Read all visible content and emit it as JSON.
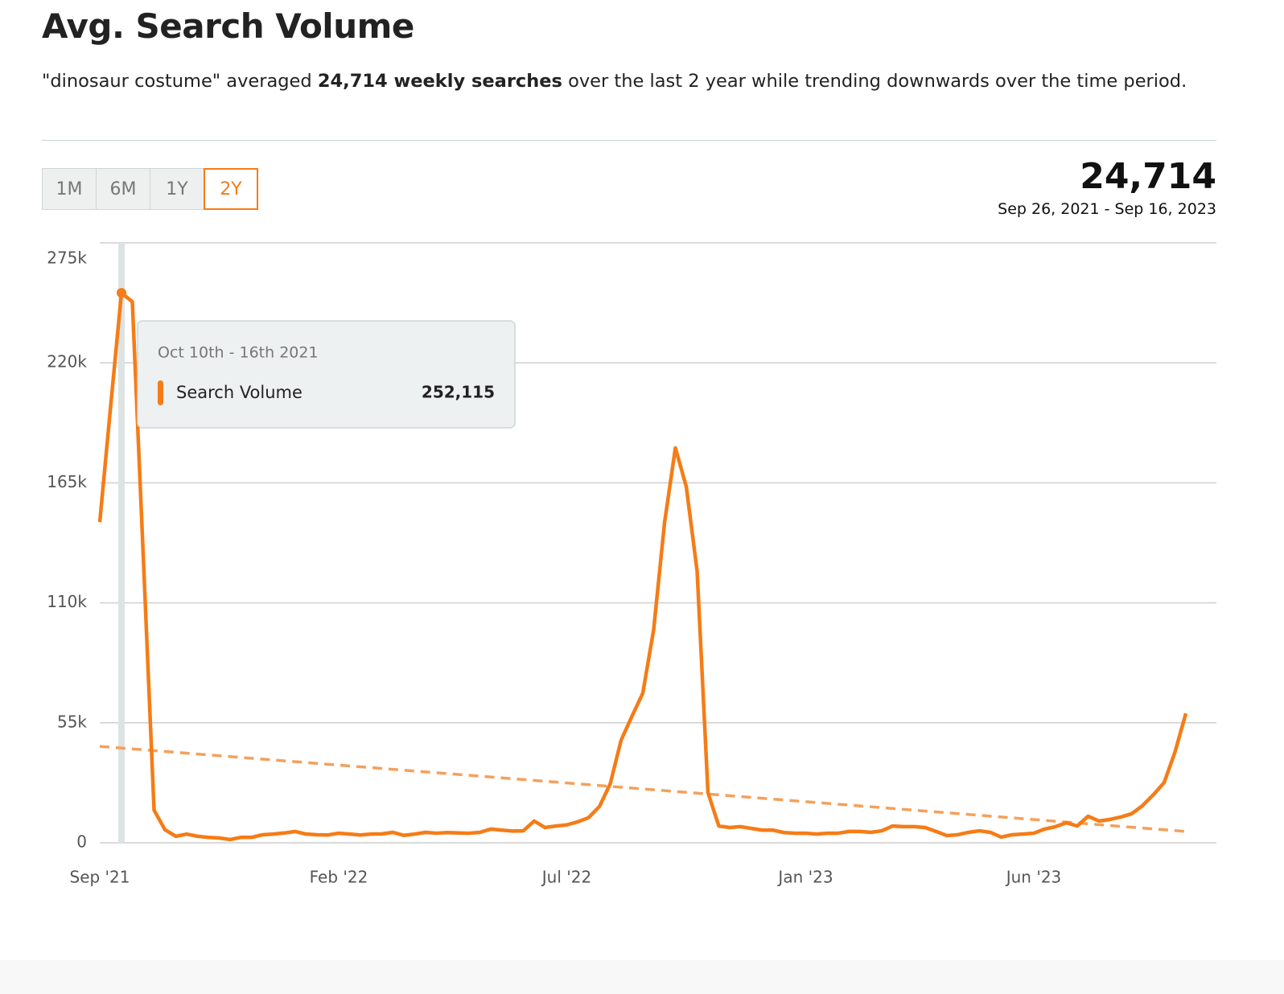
{
  "header": {
    "title": "Avg. Search Volume",
    "summary": [
      "\"dinosaur costume\" averaged ",
      "24,714 weekly searches",
      " over the last 2 year while trending downwards over the time period."
    ]
  },
  "ranges": {
    "options": [
      "1M",
      "6M",
      "1Y",
      "2Y"
    ],
    "active": 3
  },
  "stat": {
    "value": "24,714",
    "period": "Sep 26, 2021 - Sep 16, 2023"
  },
  "chart_data": {
    "type": "line",
    "categories": [
      "Sep '21",
      null,
      null,
      null,
      null,
      null,
      null,
      null,
      null,
      null,
      null,
      null,
      null,
      null,
      null,
      null,
      null,
      null,
      null,
      null,
      null,
      null,
      "Feb '22",
      null,
      null,
      null,
      null,
      null,
      null,
      null,
      null,
      null,
      null,
      null,
      null,
      null,
      null,
      null,
      null,
      null,
      null,
      null,
      null,
      "Jul '22",
      null,
      null,
      null,
      null,
      null,
      null,
      null,
      null,
      null,
      null,
      null,
      null,
      null,
      null,
      null,
      null,
      null,
      null,
      null,
      null,
      null,
      "Jan '23",
      null,
      null,
      null,
      null,
      null,
      null,
      null,
      null,
      null,
      null,
      null,
      null,
      null,
      null,
      null,
      null,
      null,
      null,
      null,
      null,
      "Jun '23",
      null,
      null,
      null,
      null,
      null,
      null,
      null,
      null,
      null,
      null,
      null,
      null,
      null,
      null
    ],
    "series": [
      {
        "name": "Search Volume",
        "color": "#f57c16",
        "values": [
          147000,
          200000,
          252115,
          248000,
          132000,
          15000,
          6000,
          3000,
          4000,
          3000,
          2500,
          2200,
          1500,
          2500,
          2500,
          3700,
          4000,
          4500,
          5200,
          4000,
          3700,
          3600,
          4400,
          4000,
          3600,
          4000,
          4100,
          4800,
          3400,
          4000,
          4800,
          4400,
          4700,
          4500,
          4400,
          4800,
          6300,
          5800,
          5400,
          5500,
          10000,
          7000,
          7700,
          8200,
          9600,
          11500,
          16600,
          27000,
          47000,
          58000,
          68600,
          97700,
          146700,
          181000,
          163300,
          124600,
          23000,
          7700,
          7000,
          7400,
          6600,
          5800,
          5800,
          4700,
          4400,
          4400,
          4000,
          4400,
          4400,
          5200,
          5200,
          4800,
          5500,
          7700,
          7400,
          7400,
          7000,
          5200,
          3300,
          3700,
          4800,
          5500,
          4800,
          2600,
          3700,
          4000,
          4400,
          6300,
          7400,
          9200,
          7700,
          12200,
          10000,
          10700,
          11800,
          13300,
          17000,
          22000,
          27600,
          41600,
          59300
        ]
      }
    ],
    "trendline": [
      44200,
      5200
    ],
    "trend_color": "#f5a05a",
    "ylim": [
      0,
      275000
    ],
    "yticks": [
      0,
      {
        "value": 55000,
        "label": "55k"
      },
      {
        "value": 110000,
        "label": "110k"
      },
      {
        "value": 165000,
        "label": "165k"
      },
      {
        "value": 220000,
        "label": "220k"
      },
      {
        "value": 275000,
        "label": "275k"
      }
    ],
    "grid": true,
    "tooltip": {
      "index": 2,
      "title": "Oct 10th - 16th 2021",
      "value_label": "252,115"
    }
  }
}
